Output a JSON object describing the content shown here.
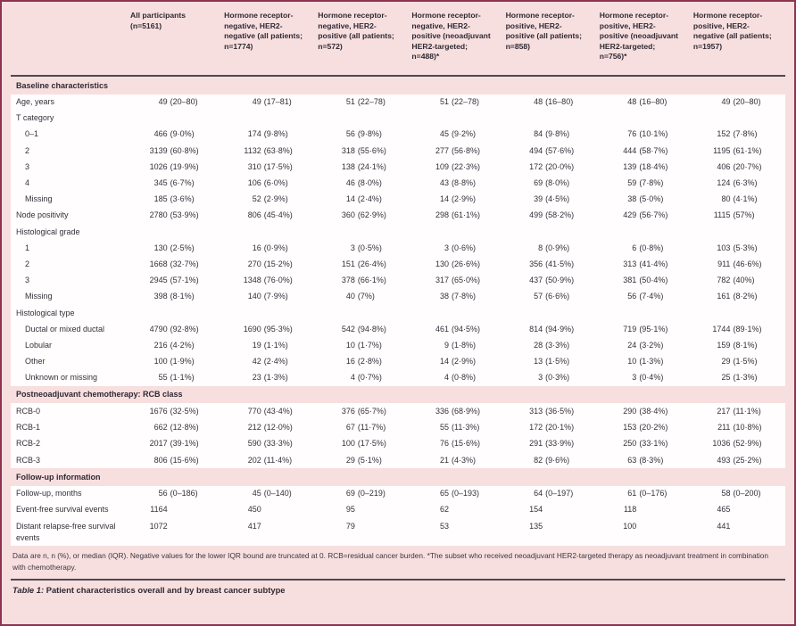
{
  "colors": {
    "page_background": "#f8dfdf",
    "row_background": "#fffdfd",
    "outer_border": "#8e3350",
    "rule": "#4d4852",
    "text": "#33303a"
  },
  "table": {
    "columns": [
      "All participants (n=5161)",
      "Hormone receptor-negative, HER2-negative (all patients; n=1774)",
      "Hormone receptor-negative, HER2-positive (all patients; n=572)",
      "Hormone receptor-negative, HER2-positive (neoadjuvant HER2-targeted; n=488)*",
      "Hormone receptor-positive, HER2-positive (all patients; n=858)",
      "Hormone receptor-positive, HER2-positive (neoadjuvant HER2-targeted; n=756)*",
      "Hormone receptor-positive, HER2-negative (all patients; n=1957)"
    ],
    "sections": [
      {
        "title": "Baseline characteristics",
        "rows": [
          {
            "label": "Age, years",
            "indent": 0,
            "values": [
              "49 (20–80)",
              "49 (17–81)",
              "51 (22–78)",
              "51 (22–78)",
              "48 (16–80)",
              "48 (16–80)",
              "49 (20–80)"
            ]
          },
          {
            "label": "T category",
            "indent": 0
          },
          {
            "label": "0–1",
            "indent": 1,
            "values": [
              "466 (9·0%)",
              "174 (9·8%)",
              "56 (9·8%)",
              "45 (9·2%)",
              "84 (9·8%)",
              "76 (10·1%)",
              "152 (7·8%)"
            ]
          },
          {
            "label": "2",
            "indent": 1,
            "values": [
              "3139 (60·8%)",
              "1132 (63·8%)",
              "318 (55·6%)",
              "277 (56·8%)",
              "494 (57·6%)",
              "444 (58·7%)",
              "1195 (61·1%)"
            ]
          },
          {
            "label": "3",
            "indent": 1,
            "values": [
              "1026 (19·9%)",
              "310 (17·5%)",
              "138 (24·1%)",
              "109 (22·3%)",
              "172 (20·0%)",
              "139 (18·4%)",
              "406 (20·7%)"
            ]
          },
          {
            "label": "4",
            "indent": 1,
            "values": [
              "345 (6·7%)",
              "106 (6·0%)",
              "46 (8·0%)",
              "43 (8·8%)",
              "69 (8·0%)",
              "59 (7·8%)",
              "124 (6·3%)"
            ]
          },
          {
            "label": "Missing",
            "indent": 1,
            "values": [
              "185 (3·6%)",
              "52 (2·9%)",
              "14 (2·4%)",
              "14 (2·9%)",
              "39 (4·5%)",
              "38 (5·0%)",
              "80 (4·1%)"
            ]
          },
          {
            "label": "Node positivity",
            "indent": 0,
            "values": [
              "2780 (53·9%)",
              "806 (45·4%)",
              "360 (62·9%)",
              "298 (61·1%)",
              "499 (58·2%)",
              "429 (56·7%)",
              "1115 (57%)"
            ]
          },
          {
            "label": "Histological grade",
            "indent": 0
          },
          {
            "label": "1",
            "indent": 1,
            "values": [
              "130 (2·5%)",
              "16 (0·9%)",
              "3 (0·5%)",
              "3 (0·6%)",
              "8 (0·9%)",
              "6 (0·8%)",
              "103 (5·3%)"
            ]
          },
          {
            "label": "2",
            "indent": 1,
            "values": [
              "1668 (32·7%)",
              "270 (15·2%)",
              "151 (26·4%)",
              "130 (26·6%)",
              "356 (41·5%)",
              "313 (41·4%)",
              "911 (46·6%)"
            ]
          },
          {
            "label": "3",
            "indent": 1,
            "values": [
              "2945 (57·1%)",
              "1348 (76·0%)",
              "378 (66·1%)",
              "317 (65·0%)",
              "437 (50·9%)",
              "381 (50·4%)",
              "782 (40%)"
            ]
          },
          {
            "label": "Missing",
            "indent": 1,
            "values": [
              "398 (8·1%)",
              "140 (7·9%)",
              "40 (7%)",
              "38 (7·8%)",
              "57 (6·6%)",
              "56 (7·4%)",
              "161 (8·2%)"
            ]
          },
          {
            "label": "Histological type",
            "indent": 0
          },
          {
            "label": "Ductal or mixed ductal",
            "indent": 1,
            "values": [
              "4790 (92·8%)",
              "1690 (95·3%)",
              "542 (94·8%)",
              "461 (94·5%)",
              "814 (94·9%)",
              "719 (95·1%)",
              "1744 (89·1%)"
            ]
          },
          {
            "label": "Lobular",
            "indent": 1,
            "values": [
              "216 (4·2%)",
              "19 (1·1%)",
              "10 (1·7%)",
              "9 (1·8%)",
              "28 (3·3%)",
              "24 (3·2%)",
              "159 (8·1%)"
            ]
          },
          {
            "label": "Other",
            "indent": 1,
            "values": [
              "100 (1·9%)",
              "42 (2·4%)",
              "16 (2·8%)",
              "14 (2·9%)",
              "13 (1·5%)",
              "10 (1·3%)",
              "29 (1·5%)"
            ]
          },
          {
            "label": "Unknown or missing",
            "indent": 1,
            "values": [
              "55 (1·1%)",
              "23 (1·3%)",
              "4 (0·7%)",
              "4 (0·8%)",
              "3 (0·3%)",
              "3 (0·4%)",
              "25 (1·3%)"
            ]
          }
        ]
      },
      {
        "title": "Postneoadjuvant chemotherapy: RCB class",
        "rows": [
          {
            "label": "RCB-0",
            "indent": 0,
            "values": [
              "1676 (32·5%)",
              "770 (43·4%)",
              "376 (65·7%)",
              "336 (68·9%)",
              "313 (36·5%)",
              "290 (38·4%)",
              "217 (11·1%)"
            ]
          },
          {
            "label": "RCB-1",
            "indent": 0,
            "values": [
              "662 (12·8%)",
              "212 (12·0%)",
              "67 (11·7%)",
              "55 (11·3%)",
              "172 (20·1%)",
              "153 (20·2%)",
              "211 (10·8%)"
            ]
          },
          {
            "label": "RCB-2",
            "indent": 0,
            "values": [
              "2017 (39·1%)",
              "590 (33·3%)",
              "100 (17·5%)",
              "76 (15·6%)",
              "291 (33·9%)",
              "250 (33·1%)",
              "1036 (52·9%)"
            ]
          },
          {
            "label": "RCB-3",
            "indent": 0,
            "values": [
              "806 (15·6%)",
              "202 (11·4%)",
              "29 (5·1%)",
              "21 (4·3%)",
              "82 (9·6%)",
              "63 (8·3%)",
              "493 (25·2%)"
            ]
          }
        ]
      },
      {
        "title": "Follow-up information",
        "rows": [
          {
            "label": "Follow-up, months",
            "indent": 0,
            "values": [
              "56 (0–186)",
              "45 (0–140)",
              "69 (0–219)",
              "65 (0–193)",
              "64 (0–197)",
              "61 (0–176)",
              "58 (0–200)"
            ]
          },
          {
            "label": "Event-free survival events",
            "indent": 0,
            "values": [
              "1164",
              "450",
              "95",
              "62",
              "154",
              "118",
              "465"
            ]
          },
          {
            "label": "Distant relapse-free survival events",
            "indent": 0,
            "values": [
              "1072",
              "417",
              "79",
              "53",
              "135",
              "100",
              "441"
            ]
          }
        ]
      }
    ]
  },
  "footnote": "Data are n, n (%), or median (IQR). Negative values for the lower IQR bound are truncated at 0. RCB=residual cancer burden. *The subset who received neoadjuvant HER2-targeted therapy as neoadjuvant treatment in combination with chemotherapy.",
  "caption": {
    "label": "Table 1:",
    "title": "Patient characteristics overall and by breast cancer subtype"
  }
}
